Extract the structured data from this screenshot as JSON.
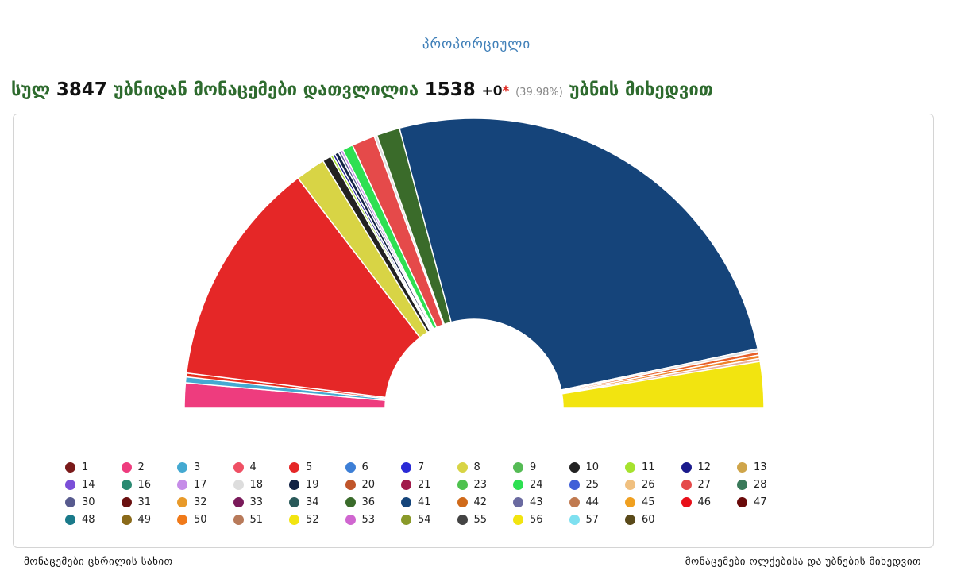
{
  "header": {
    "subtitle": "პროპორციული",
    "prefix": "სულ",
    "total_precincts": "3847",
    "middle": "უბნიდან მონაცემები დათვლილია",
    "counted": "1538",
    "plus": "+",
    "extra": "0",
    "star": "*",
    "percent": "(39.98%)",
    "suffix": "უბნის მიხედვით"
  },
  "footer": {
    "left": "მონაცემები ცხრილის სახით",
    "right": "მონაცემები ოლქებისა და უბნების მიხედვით"
  },
  "chart_data": {
    "type": "pie",
    "shape": "semicircle",
    "order": [
      "2",
      "3",
      "46",
      "5",
      "8",
      "10",
      "11",
      "12",
      "19",
      "30",
      "17",
      "24",
      "27",
      "18",
      "36",
      "41",
      "55",
      "48",
      "50",
      "51",
      "52"
    ],
    "segments": [
      {
        "party": "2",
        "value": 2.6,
        "color": "#ee3c7e"
      },
      {
        "party": "3",
        "value": 0.6,
        "color": "#44a9d1"
      },
      {
        "party": "46",
        "value": 0.4,
        "color": "#e8301f"
      },
      {
        "party": "5",
        "value": 23.5,
        "color": "#e52727"
      },
      {
        "party": "8",
        "value": 3.1,
        "color": "#d8d445"
      },
      {
        "party": "10",
        "value": 0.9,
        "color": "#222222"
      },
      {
        "party": "11",
        "value": 0.25,
        "color": "#a6e22e"
      },
      {
        "party": "12",
        "value": 0.25,
        "color": "#1a1a8c"
      },
      {
        "party": "19",
        "value": 0.4,
        "color": "#112244"
      },
      {
        "party": "30",
        "value": 0.25,
        "color": "#575a8e"
      },
      {
        "party": "17",
        "value": 0.25,
        "color": "#c68de8"
      },
      {
        "party": "24",
        "value": 1.1,
        "color": "#2ee052"
      },
      {
        "party": "27",
        "value": 2.4,
        "color": "#e54a4a"
      },
      {
        "party": "18",
        "value": 0.3,
        "color": "#dddddd"
      },
      {
        "party": "36",
        "value": 2.4,
        "color": "#3a6b2a"
      },
      {
        "party": "41",
        "value": 48.0,
        "color": "#15447a"
      },
      {
        "party": "55",
        "value": 0.3,
        "color": "#e0e0e0"
      },
      {
        "party": "48",
        "value": 0.35,
        "color": "#e8602a"
      },
      {
        "party": "50",
        "value": 0.35,
        "color": "#f0822a"
      },
      {
        "party": "51",
        "value": 0.3,
        "color": "#e8b0a0"
      },
      {
        "party": "52",
        "value": 4.8,
        "color": "#f2e410"
      }
    ],
    "legend": [
      {
        "label": "1",
        "color": "#7a1a1a"
      },
      {
        "label": "2",
        "color": "#ee3c7e"
      },
      {
        "label": "3",
        "color": "#44a9d1"
      },
      {
        "label": "4",
        "color": "#ef5064"
      },
      {
        "label": "5",
        "color": "#e52727"
      },
      {
        "label": "6",
        "color": "#3d7fd6"
      },
      {
        "label": "7",
        "color": "#2a2ad6"
      },
      {
        "label": "8",
        "color": "#d8d445"
      },
      {
        "label": "9",
        "color": "#55bb55"
      },
      {
        "label": "10",
        "color": "#222222"
      },
      {
        "label": "11",
        "color": "#a6e22e"
      },
      {
        "label": "12",
        "color": "#1a1a8c"
      },
      {
        "label": "13",
        "color": "#cfa54a"
      },
      {
        "label": "14",
        "color": "#7b4fd8"
      },
      {
        "label": "16",
        "color": "#2a8a72"
      },
      {
        "label": "17",
        "color": "#c68de8"
      },
      {
        "label": "18",
        "color": "#dddddd"
      },
      {
        "label": "19",
        "color": "#112244"
      },
      {
        "label": "20",
        "color": "#c0552a"
      },
      {
        "label": "21",
        "color": "#a01a4a"
      },
      {
        "label": "23",
        "color": "#4fc24f"
      },
      {
        "label": "24",
        "color": "#2ee052"
      },
      {
        "label": "25",
        "color": "#4060d8"
      },
      {
        "label": "26",
        "color": "#f0c080"
      },
      {
        "label": "27",
        "color": "#e54a4a"
      },
      {
        "label": "28",
        "color": "#3a7a5a"
      },
      {
        "label": "30",
        "color": "#575a8e"
      },
      {
        "label": "31",
        "color": "#6a1010"
      },
      {
        "label": "32",
        "color": "#e89a2a"
      },
      {
        "label": "33",
        "color": "#7a1a5a"
      },
      {
        "label": "34",
        "color": "#2a5a5a"
      },
      {
        "label": "36",
        "color": "#3a6b2a"
      },
      {
        "label": "41",
        "color": "#15447a"
      },
      {
        "label": "42",
        "color": "#d06a1a"
      },
      {
        "label": "43",
        "color": "#6a6aa0"
      },
      {
        "label": "44",
        "color": "#c07a50"
      },
      {
        "label": "45",
        "color": "#f0a020"
      },
      {
        "label": "46",
        "color": "#e8101a"
      },
      {
        "label": "47",
        "color": "#6a0a0a"
      },
      {
        "label": "48",
        "color": "#1a7a8a"
      },
      {
        "label": "49",
        "color": "#8a6a1a"
      },
      {
        "label": "50",
        "color": "#f07a1a"
      },
      {
        "label": "51",
        "color": "#b87a5a"
      },
      {
        "label": "52",
        "color": "#f2e410"
      },
      {
        "label": "53",
        "color": "#d066d0"
      },
      {
        "label": "54",
        "color": "#8a9a2a"
      },
      {
        "label": "55",
        "color": "#444444"
      },
      {
        "label": "56",
        "color": "#f2e410"
      },
      {
        "label": "57",
        "color": "#7ee0f0"
      },
      {
        "label": "60",
        "color": "#5a4a1a"
      }
    ]
  }
}
